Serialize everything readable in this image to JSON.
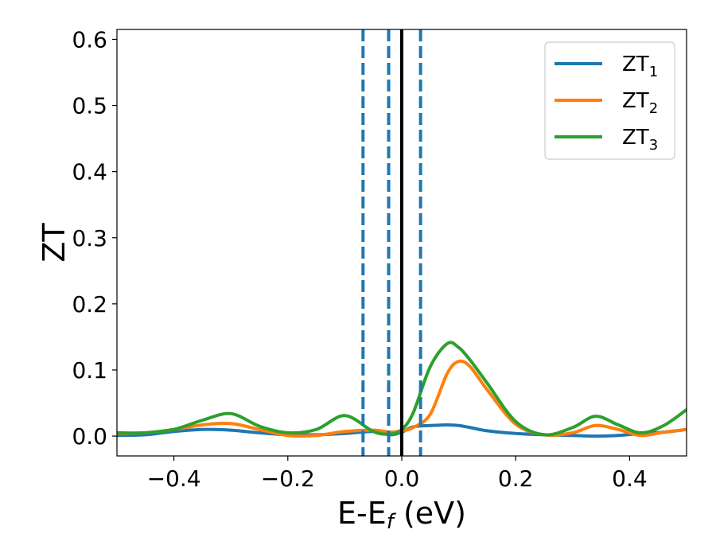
{
  "chart_data": {
    "type": "line",
    "xlabel": "E-E",
    "xlabel_sub": "f",
    "xlabel_unit": " (eV)",
    "ylabel": "ZT",
    "xlim": [
      -0.5,
      0.5
    ],
    "ylim": [
      -0.03,
      0.615
    ],
    "xticks": [
      -0.4,
      -0.2,
      0.0,
      0.2,
      0.4
    ],
    "xtick_labels": [
      "−0.4",
      "−0.2",
      "0.0",
      "0.2",
      "0.4"
    ],
    "yticks": [
      0.0,
      0.1,
      0.2,
      0.3,
      0.4,
      0.5,
      0.6
    ],
    "ytick_labels": [
      "0.0",
      "0.1",
      "0.2",
      "0.3",
      "0.4",
      "0.5",
      "0.6"
    ],
    "grid": false,
    "legend_position": "top-right",
    "vertical_lines": [
      {
        "x": -0.068,
        "color": "#1f77b4",
        "style": "dashed"
      },
      {
        "x": -0.023,
        "color": "#1f77b4",
        "style": "dashed"
      },
      {
        "x": 0.0,
        "color": "#000000",
        "style": "solid"
      },
      {
        "x": 0.033,
        "color": "#1f77b4",
        "style": "dashed"
      }
    ],
    "x": [
      -0.5,
      -0.45,
      -0.4,
      -0.35,
      -0.3,
      -0.25,
      -0.2,
      -0.15,
      -0.1,
      -0.05,
      -0.02,
      0.0,
      0.02,
      0.05,
      0.08,
      0.1,
      0.12,
      0.15,
      0.2,
      0.25,
      0.3,
      0.34,
      0.38,
      0.42,
      0.46,
      0.5
    ],
    "series": [
      {
        "name": "ZT",
        "name_sub": "1",
        "color": "#1f77b4",
        "values": [
          0.001,
          0.002,
          0.007,
          0.01,
          0.009,
          0.005,
          0.002,
          0.002,
          0.004,
          0.007,
          0.002,
          0.006,
          0.014,
          0.016,
          0.017,
          0.016,
          0.013,
          0.008,
          0.004,
          0.002,
          0.001,
          0.0,
          0.001,
          0.004,
          0.006,
          0.01
        ]
      },
      {
        "name": "ZT",
        "name_sub": "2",
        "color": "#ff7f0e",
        "values": [
          0.004,
          0.005,
          0.01,
          0.017,
          0.019,
          0.01,
          0.001,
          0.001,
          0.007,
          0.009,
          0.006,
          0.008,
          0.013,
          0.033,
          0.095,
          0.113,
          0.105,
          0.07,
          0.018,
          0.002,
          0.005,
          0.016,
          0.01,
          0.001,
          0.006,
          0.01
        ]
      },
      {
        "name": "ZT",
        "name_sub": "3",
        "color": "#2ca02c",
        "values": [
          0.005,
          0.005,
          0.01,
          0.024,
          0.034,
          0.015,
          0.005,
          0.01,
          0.031,
          0.007,
          0.003,
          0.01,
          0.035,
          0.105,
          0.14,
          0.134,
          0.115,
          0.08,
          0.022,
          0.002,
          0.013,
          0.03,
          0.017,
          0.005,
          0.016,
          0.04
        ]
      }
    ]
  }
}
